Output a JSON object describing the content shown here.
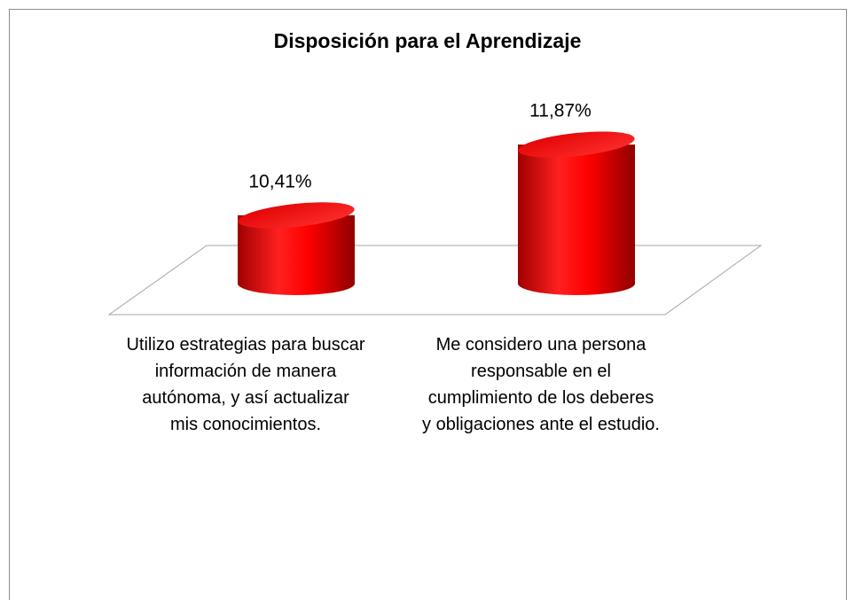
{
  "chart_data": {
    "type": "cylinder",
    "title": "Disposición para el Aprendizaje",
    "categories": [
      "Utilizo estrategias para buscar información de manera autónoma, y así actualizar mis conocimientos.",
      "Me considero una persona responsable en el cumplimiento de los deberes y obligaciones ante el estudio."
    ],
    "values": [
      10.41,
      11.87
    ],
    "value_labels": [
      "10,41%",
      "11,87%"
    ],
    "color": "#ff0000",
    "ylim": [
      9,
      12
    ]
  }
}
